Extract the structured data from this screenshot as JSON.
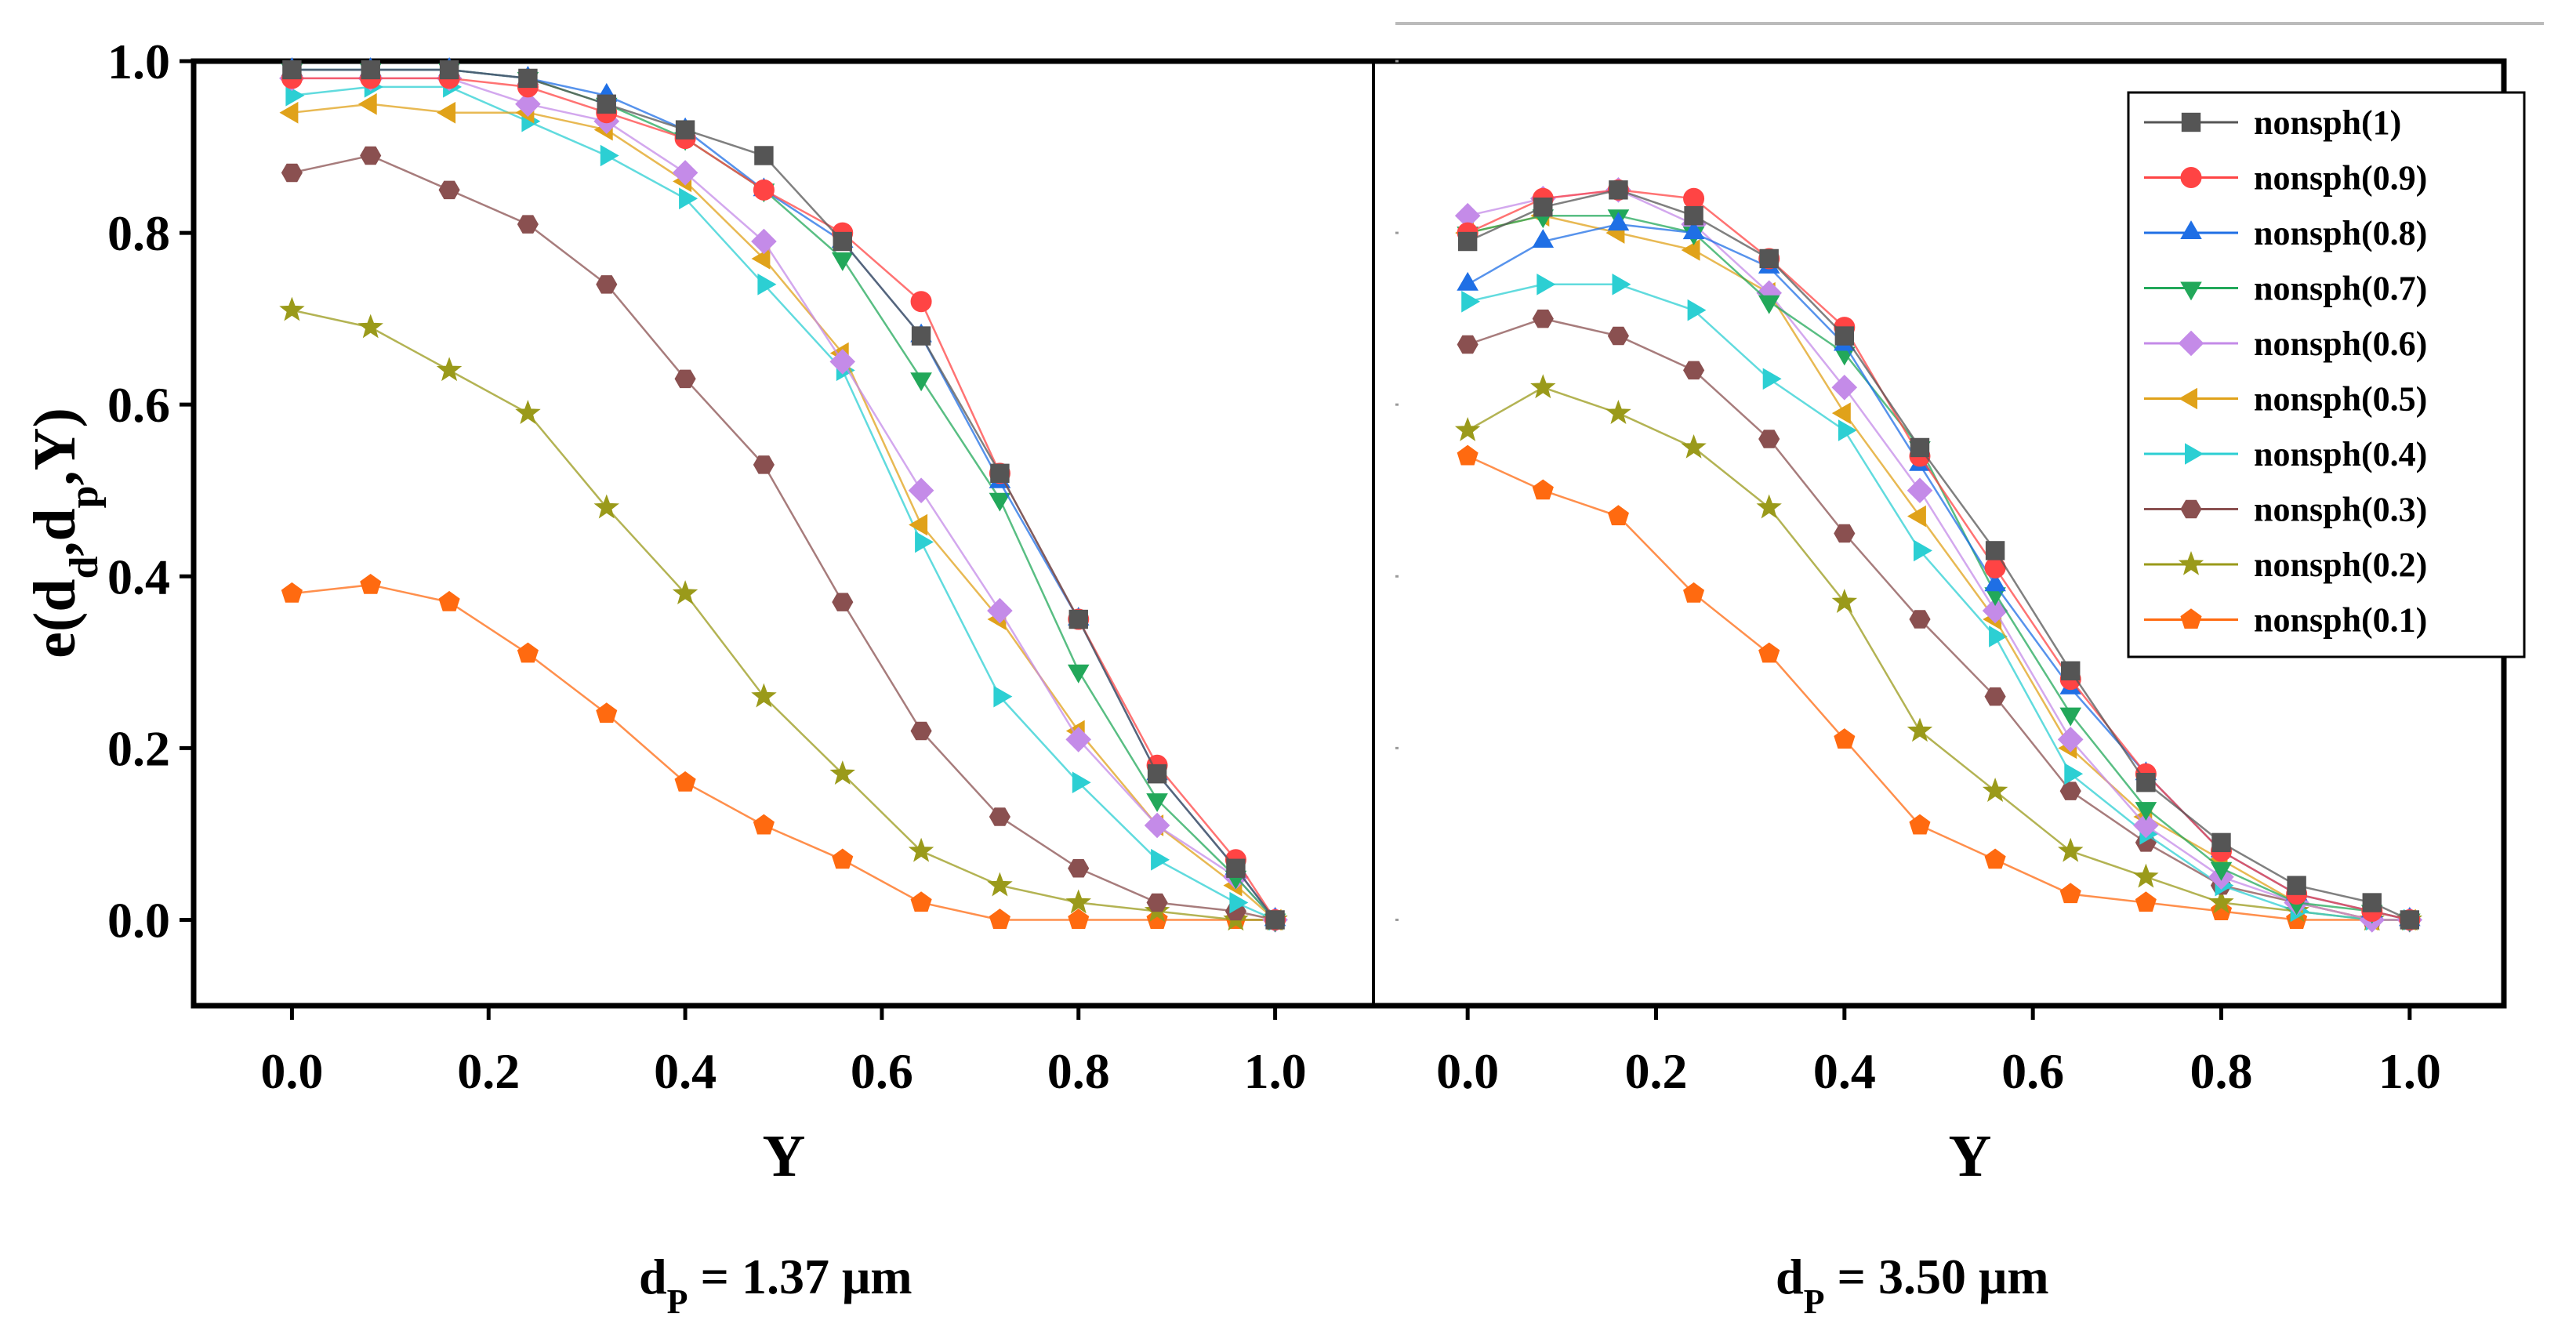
{
  "chart_data": [
    {
      "type": "line",
      "panel": "left",
      "caption": {
        "symbol": "d",
        "subscript": "P",
        "text": " = 1.37 μm"
      },
      "xlabel": "Y",
      "ylabel": {
        "main": "e(d",
        "sub1": "d",
        "mid1": ",d",
        "sub2": "p",
        "end": ",Y)"
      },
      "xlim": [
        -0.1,
        1.1
      ],
      "ylim": [
        -0.1,
        1.0
      ],
      "xticks": [
        "0.0",
        "0.2",
        "0.4",
        "0.6",
        "0.8",
        "1.0"
      ],
      "yticks": [
        "0.0",
        "0.2",
        "0.4",
        "0.6",
        "0.8",
        "1.0"
      ],
      "x": [
        0,
        0.08,
        0.16,
        0.24,
        0.32,
        0.4,
        0.48,
        0.56,
        0.64,
        0.72,
        0.8,
        0.88,
        0.96,
        1.0
      ],
      "series": [
        {
          "name": "nonsph(1)",
          "values": [
            0.99,
            0.99,
            0.99,
            0.98,
            0.95,
            0.92,
            0.89,
            0.79,
            0.68,
            0.52,
            0.35,
            0.17,
            0.06,
            0.0
          ]
        },
        {
          "name": "nonsph(0.9)",
          "values": [
            0.98,
            0.98,
            0.98,
            0.97,
            0.94,
            0.91,
            0.85,
            0.8,
            0.72,
            0.52,
            0.35,
            0.18,
            0.07,
            0.0
          ]
        },
        {
          "name": "nonsph(0.8)",
          "values": [
            0.99,
            0.99,
            0.99,
            0.98,
            0.96,
            0.92,
            0.85,
            0.79,
            0.68,
            0.51,
            0.35,
            0.17,
            0.06,
            0.0
          ]
        },
        {
          "name": "nonsph(0.7)",
          "values": [
            0.99,
            0.99,
            0.99,
            0.98,
            0.95,
            0.91,
            0.85,
            0.77,
            0.63,
            0.49,
            0.29,
            0.14,
            0.05,
            0.0
          ]
        },
        {
          "name": "nonsph(0.6)",
          "values": [
            0.98,
            0.98,
            0.98,
            0.95,
            0.93,
            0.87,
            0.79,
            0.65,
            0.5,
            0.36,
            0.21,
            0.11,
            0.05,
            0.0
          ]
        },
        {
          "name": "nonsph(0.5)",
          "values": [
            0.94,
            0.95,
            0.94,
            0.94,
            0.92,
            0.86,
            0.77,
            0.66,
            0.46,
            0.35,
            0.22,
            0.11,
            0.04,
            0.0
          ]
        },
        {
          "name": "nonsph(0.4)",
          "values": [
            0.96,
            0.97,
            0.97,
            0.93,
            0.89,
            0.84,
            0.74,
            0.64,
            0.44,
            0.26,
            0.16,
            0.07,
            0.02,
            0.0
          ]
        },
        {
          "name": "nonsph(0.3)",
          "values": [
            0.87,
            0.89,
            0.85,
            0.81,
            0.74,
            0.63,
            0.53,
            0.37,
            0.22,
            0.12,
            0.06,
            0.02,
            0.01,
            0.0
          ]
        },
        {
          "name": "nonsph(0.2)",
          "values": [
            0.71,
            0.69,
            0.64,
            0.59,
            0.48,
            0.38,
            0.26,
            0.17,
            0.08,
            0.04,
            0.02,
            0.01,
            0.0,
            0.0
          ]
        },
        {
          "name": "nonsph(0.1)",
          "values": [
            0.38,
            0.39,
            0.37,
            0.31,
            0.24,
            0.16,
            0.11,
            0.07,
            0.02,
            0.0,
            0.0,
            0.0,
            0.0,
            0.0
          ]
        }
      ]
    },
    {
      "type": "line",
      "panel": "right",
      "caption": {
        "symbol": "d",
        "subscript": "P",
        "text": " = 3.50 μm"
      },
      "xlabel": "Y",
      "xlim": [
        -0.1,
        1.1
      ],
      "ylim": [
        -0.1,
        1.0
      ],
      "xticks": [
        "0.0",
        "0.2",
        "0.4",
        "0.6",
        "0.8",
        "1.0"
      ],
      "x": [
        0,
        0.08,
        0.16,
        0.24,
        0.32,
        0.4,
        0.48,
        0.56,
        0.64,
        0.72,
        0.8,
        0.88,
        0.96,
        1.0
      ],
      "series": [
        {
          "name": "nonsph(1)",
          "values": [
            0.79,
            0.83,
            0.85,
            0.82,
            0.77,
            0.68,
            0.55,
            0.43,
            0.29,
            0.16,
            0.09,
            0.04,
            0.02,
            0.0
          ]
        },
        {
          "name": "nonsph(0.9)",
          "values": [
            0.8,
            0.84,
            0.85,
            0.84,
            0.77,
            0.69,
            0.54,
            0.41,
            0.28,
            0.17,
            0.08,
            0.03,
            0.01,
            0.0
          ]
        },
        {
          "name": "nonsph(0.8)",
          "values": [
            0.74,
            0.79,
            0.81,
            0.8,
            0.76,
            0.67,
            0.53,
            0.39,
            0.27,
            0.17,
            0.08,
            0.03,
            0.01,
            0.0
          ]
        },
        {
          "name": "nonsph(0.7)",
          "values": [
            0.8,
            0.82,
            0.82,
            0.8,
            0.72,
            0.66,
            0.55,
            0.38,
            0.24,
            0.13,
            0.06,
            0.02,
            0.01,
            0.0
          ]
        },
        {
          "name": "nonsph(0.6)",
          "values": [
            0.82,
            0.84,
            0.85,
            0.81,
            0.73,
            0.62,
            0.5,
            0.36,
            0.21,
            0.11,
            0.05,
            0.02,
            0.0,
            0.0
          ]
        },
        {
          "name": "nonsph(0.5)",
          "values": [
            0.8,
            0.82,
            0.8,
            0.78,
            0.73,
            0.59,
            0.47,
            0.35,
            0.2,
            0.12,
            0.07,
            0.02,
            0.0,
            0.0
          ]
        },
        {
          "name": "nonsph(0.4)",
          "values": [
            0.72,
            0.74,
            0.74,
            0.71,
            0.63,
            0.57,
            0.43,
            0.33,
            0.17,
            0.1,
            0.04,
            0.01,
            0.0,
            0.0
          ]
        },
        {
          "name": "nonsph(0.3)",
          "values": [
            0.67,
            0.7,
            0.68,
            0.64,
            0.56,
            0.45,
            0.35,
            0.26,
            0.15,
            0.09,
            0.04,
            0.02,
            0.0,
            0.0
          ]
        },
        {
          "name": "nonsph(0.2)",
          "values": [
            0.57,
            0.62,
            0.59,
            0.55,
            0.48,
            0.37,
            0.22,
            0.15,
            0.08,
            0.05,
            0.02,
            0.01,
            0.0,
            0.0
          ]
        },
        {
          "name": "nonsph(0.1)",
          "values": [
            0.54,
            0.5,
            0.47,
            0.38,
            0.31,
            0.21,
            0.11,
            0.07,
            0.03,
            0.02,
            0.01,
            0.0,
            0.0,
            0.0
          ]
        }
      ]
    }
  ],
  "legend": {
    "placement": "top-right",
    "entries": [
      {
        "label": "nonsph(1)",
        "color": "#555555",
        "marker": "square"
      },
      {
        "label": "nonsph(0.9)",
        "color": "#ff4444",
        "marker": "circle"
      },
      {
        "label": "nonsph(0.8)",
        "color": "#1f6fe5",
        "marker": "triangle-up"
      },
      {
        "label": "nonsph(0.7)",
        "color": "#22a85a",
        "marker": "triangle-down"
      },
      {
        "label": "nonsph(0.6)",
        "color": "#c48be8",
        "marker": "diamond"
      },
      {
        "label": "nonsph(0.5)",
        "color": "#e0a21a",
        "marker": "triangle-left"
      },
      {
        "label": "nonsph(0.4)",
        "color": "#2ccfd3",
        "marker": "triangle-right"
      },
      {
        "label": "nonsph(0.3)",
        "color": "#8a5050",
        "marker": "hexagon"
      },
      {
        "label": "nonsph(0.2)",
        "color": "#9a9a1a",
        "marker": "star"
      },
      {
        "label": "nonsph(0.1)",
        "color": "#ff6a10",
        "marker": "pentagon"
      }
    ]
  }
}
